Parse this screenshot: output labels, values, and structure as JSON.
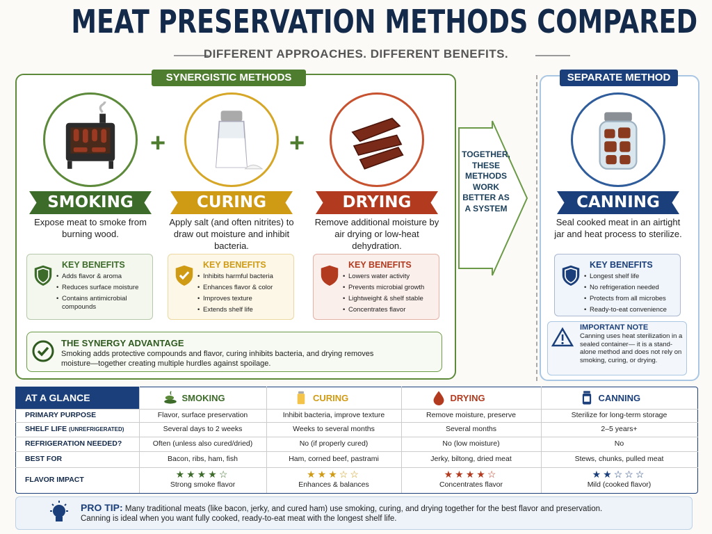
{
  "header": {
    "title": "MEAT PRESERVATION METHODS COMPARED",
    "subtitle": "DIFFERENT APPROACHES.  DIFFERENT BENEFITS."
  },
  "synergistic": {
    "label": "SYNERGISTIC METHODS",
    "methods": [
      {
        "name": "SMOKING",
        "description": "Expose meat to smoke from burning wood.",
        "benefits_title": "KEY BENEFITS",
        "benefits": [
          "Adds flavor & aroma",
          "Reduces surface moisture",
          "Contains antimicrobial compounds"
        ]
      },
      {
        "name": "CURING",
        "description": "Apply salt (and often nitrites) to draw out moisture and inhibit bacteria.",
        "benefits_title": "KEY BENEFITS",
        "benefits": [
          "Inhibits harmful bacteria",
          "Enhances flavor & color",
          "Improves texture",
          "Extends shelf life"
        ]
      },
      {
        "name": "DRYING",
        "description": "Remove additional moisture by air drying or low-heat dehydration.",
        "benefits_title": "KEY BENEFITS",
        "benefits": [
          "Lowers water activity",
          "Prevents microbial growth",
          "Lightweight & shelf stable",
          "Concentrates flavor"
        ]
      }
    ],
    "synergy": {
      "title": "THE SYNERGY ADVANTAGE",
      "text": "Smoking adds protective compounds and flavor, curing inhibits bacteria, and drying removes moisture—together creating multiple hurdles against spoilage."
    }
  },
  "arrow_text": "TOGETHER, THESE METHODS WORK BETTER AS A SYSTEM",
  "separate": {
    "label": "SEPARATE METHOD",
    "method": {
      "name": "CANNING",
      "description": "Seal cooked meat in an airtight jar and heat process to sterilize.",
      "benefits_title": "KEY BENEFITS",
      "benefits": [
        "Longest shelf life",
        "No refrigeration needed",
        "Protects from all microbes",
        "Ready-to-eat convenience"
      ]
    },
    "note": {
      "title": "IMPORTANT NOTE",
      "text": "Canning uses heat sterilization in a sealed container— it is a stand-alone method and does not rely on smoking, curing, or drying."
    }
  },
  "table": {
    "title": "AT A GLANCE",
    "columns": [
      "SMOKING",
      "CURING",
      "DRYING",
      "CANNING"
    ],
    "rows": [
      {
        "label": "PRIMARY PURPOSE",
        "cells": [
          "Flavor, surface preservation",
          "Inhibit bacteria, improve texture",
          "Remove moisture, preserve",
          "Sterilize for long-term storage"
        ]
      },
      {
        "label": "SHELF LIFE",
        "label_note": "(UNREFRIGERATED)",
        "cells": [
          "Several days to 2 weeks",
          "Weeks to several months",
          "Several months",
          "2–5 years+"
        ]
      },
      {
        "label": "REFRIGERATION NEEDED?",
        "cells": [
          "Often (unless also cured/dried)",
          "No (if properly cured)",
          "No (low moisture)",
          "No"
        ]
      },
      {
        "label": "BEST FOR",
        "cells": [
          "Bacon, ribs, ham, fish",
          "Ham, corned beef, pastrami",
          "Jerky, biltong, dried meat",
          "Stews, chunks, pulled meat"
        ]
      }
    ],
    "flavor": {
      "label": "FLAVOR IMPACT",
      "max": 5,
      "ratings": [
        4,
        3,
        4,
        2
      ],
      "notes": [
        "Strong smoke flavor",
        "Enhances & balances",
        "Concentrates flavor",
        "Mild (cooked flavor)"
      ]
    }
  },
  "tip": {
    "label": "PRO TIP:",
    "text": "Many traditional meats (like bacon, jerky, and cured ham) use smoking, curing, and drying together for the best flavor and preservation.",
    "text2": "Canning is ideal when you want fully cooked, ready-to-eat meat with the longest shelf life."
  }
}
